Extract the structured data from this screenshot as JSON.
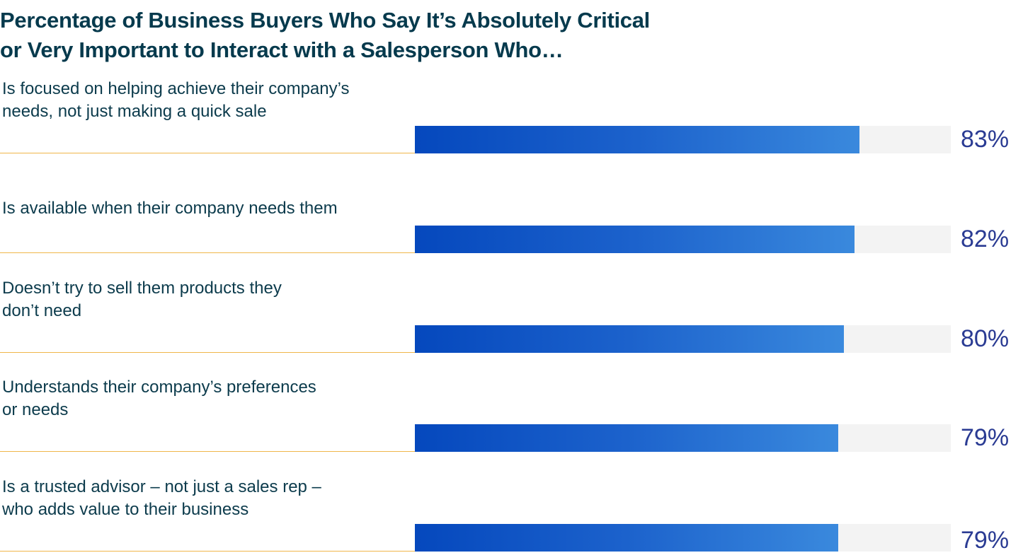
{
  "chart_data": {
    "type": "bar",
    "orientation": "horizontal",
    "title": "Percentage of Business Buyers Who Say It’s Absolutely Critical or Very Important to Interact with a Salesperson Who…",
    "title_lines": [
      "Percentage of Business Buyers Who Say It’s Absolutely Critical",
      "or Very Important to Interact with a Salesperson Who…"
    ],
    "categories": [
      [
        "Is focused on helping achieve their company’s",
        "needs, not just making a quick sale"
      ],
      [
        "Is available when their company needs them"
      ],
      [
        "Doesn’t try to sell them products they",
        "don’t need"
      ],
      [
        "Understands their company’s preferences",
        "or needs"
      ],
      [
        "Is a trusted advisor – not just a sales rep –",
        "who adds value to their business"
      ]
    ],
    "values": [
      83,
      82,
      80,
      79,
      79
    ],
    "value_labels": [
      "83%",
      "82%",
      "80%",
      "79%",
      "79%"
    ],
    "xlim": [
      0,
      100
    ],
    "xlabel": "",
    "ylabel": "",
    "grid": false,
    "colors": {
      "bar_start": "#0548bd",
      "bar_end": "#3a89dd",
      "track": "#f3f3f3",
      "rule": "#f0b64a",
      "value": "#2a3b93",
      "title": "#063a4d"
    }
  }
}
